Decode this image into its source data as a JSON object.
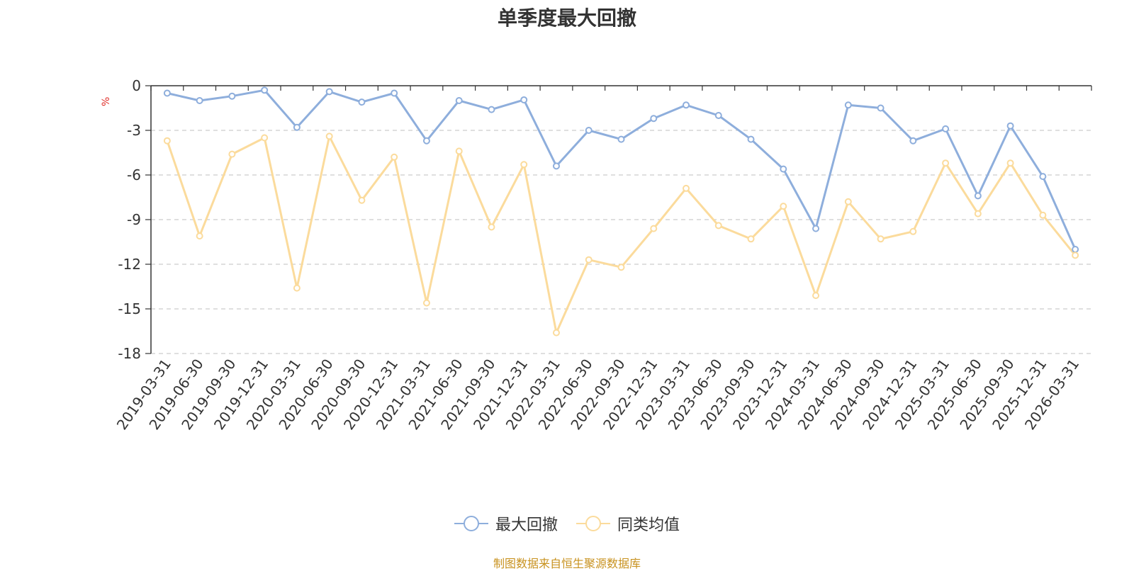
{
  "chart_data": {
    "type": "line",
    "title": "单季度最大回撤",
    "ylabel": "%",
    "ylim": [
      -18,
      0
    ],
    "yticks": [
      0,
      -3,
      -6,
      -9,
      -12,
      -15,
      -18
    ],
    "grid": true,
    "legend_position": "bottom",
    "categories": [
      "2019-03-31",
      "2019-06-30",
      "2019-09-30",
      "2019-12-31",
      "2020-03-31",
      "2020-06-30",
      "2020-09-30",
      "2020-12-31",
      "2021-03-31",
      "2021-06-30",
      "2021-09-30",
      "2021-12-31",
      "2022-03-31",
      "2022-06-30",
      "2022-09-30",
      "2022-12-31",
      "2023-03-31",
      "2023-06-30",
      "2023-09-30",
      "2023-12-31",
      "2024-03-31",
      "2024-06-30",
      "2024-09-30",
      "2024-12-31",
      "2025-03-31",
      "2025-06-30",
      "2025-09-30",
      "2025-12-31",
      "2026-03-31"
    ],
    "series": [
      {
        "name": "最大回撤",
        "color": "#8eaedc",
        "values": [
          -0.5,
          -1.0,
          -0.7,
          -0.3,
          -2.8,
          -0.4,
          -1.1,
          -0.5,
          -3.7,
          -1.0,
          -1.6,
          -0.95,
          -5.4,
          -3.0,
          -3.6,
          -2.2,
          -1.3,
          -2.0,
          -3.6,
          -5.6,
          -9.6,
          -1.3,
          -1.5,
          -3.7,
          -2.9,
          -7.4,
          -2.7,
          -6.1,
          -11.0
        ]
      },
      {
        "name": "同类均值",
        "color": "#fbdb9c",
        "values": [
          -3.7,
          -10.1,
          -4.6,
          -3.5,
          -13.6,
          -3.4,
          -7.7,
          -4.8,
          -14.6,
          -4.4,
          -9.5,
          -5.3,
          -16.6,
          -11.7,
          -12.2,
          -9.6,
          -6.9,
          -9.4,
          -10.3,
          -8.1,
          -14.1,
          -7.8,
          -10.3,
          -9.8,
          -5.2,
          -8.6,
          -5.2,
          -8.7,
          -11.4
        ]
      }
    ],
    "source_note": "制图数据来自恒生聚源数据库"
  }
}
